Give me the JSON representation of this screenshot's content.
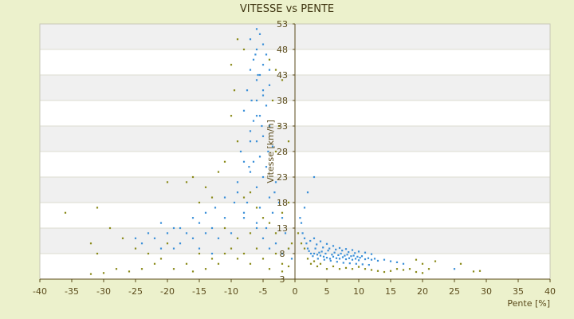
{
  "chart_data": {
    "type": "scatter",
    "title": "VITESSE vs PENTE",
    "xlabel": "Pente [%]",
    "ylabel": "Vitesse [km/h]",
    "xlim": [
      -40,
      40
    ],
    "ylim": [
      3,
      53
    ],
    "x_ticks": [
      "-40",
      "-35",
      "-30",
      "-25",
      "-20",
      "-15",
      "-10",
      "-5",
      "0",
      "5",
      "10",
      "15",
      "20",
      "25",
      "30",
      "35",
      "40"
    ],
    "y_ticks": [
      "3",
      "8",
      "13",
      "18",
      "23",
      "28",
      "33",
      "38",
      "43",
      "48",
      "53"
    ],
    "grid": "horizontal alternating bands",
    "legend": "none",
    "series": [
      {
        "color": "#3a8fd8",
        "marker": "dot",
        "points": [
          [
            -6,
            52
          ],
          [
            -5.5,
            51
          ],
          [
            -7,
            50
          ],
          [
            -5,
            49
          ],
          [
            -6,
            48
          ],
          [
            -4.5,
            47
          ],
          [
            -6.5,
            46
          ],
          [
            -5,
            45
          ],
          [
            -7,
            44
          ],
          [
            -5.5,
            43
          ],
          [
            -6,
            42
          ],
          [
            -4,
            41
          ],
          [
            -7.5,
            40
          ],
          [
            -5,
            39
          ],
          [
            -6,
            38
          ],
          [
            -4.5,
            37
          ],
          [
            -8,
            36
          ],
          [
            -5.5,
            35
          ],
          [
            -6.5,
            34
          ],
          [
            -4,
            33
          ],
          [
            -7,
            32
          ],
          [
            -5,
            31
          ],
          [
            -6,
            30
          ],
          [
            -3.5,
            29
          ],
          [
            -8.5,
            28
          ],
          [
            -5.5,
            27
          ],
          [
            -6.5,
            26
          ],
          [
            -4.5,
            25
          ],
          [
            -7,
            24
          ],
          [
            -5,
            23
          ],
          [
            -3,
            22
          ],
          [
            -6,
            21
          ],
          [
            -9,
            20
          ],
          [
            -4,
            19
          ],
          [
            -7.5,
            18
          ],
          [
            -5.5,
            17
          ],
          [
            -3.5,
            16
          ],
          [
            -8,
            15
          ],
          [
            -6,
            14
          ],
          [
            -4.5,
            13
          ],
          [
            -10,
            12
          ],
          [
            -12,
            11
          ],
          [
            -14,
            12
          ],
          [
            -16,
            11
          ],
          [
            -18,
            10
          ],
          [
            -20,
            12
          ],
          [
            -22,
            11
          ],
          [
            -24,
            10
          ],
          [
            -19,
            13
          ],
          [
            -15,
            14
          ],
          [
            -11,
            15
          ],
          [
            -13,
            13
          ],
          [
            -17,
            12
          ],
          [
            -21,
            14
          ],
          [
            -9,
            22
          ],
          [
            -8,
            26
          ],
          [
            -7,
            30
          ],
          [
            -6,
            35
          ],
          [
            -5,
            40
          ],
          [
            -4,
            44
          ],
          [
            -6.2,
            47
          ],
          [
            -5.8,
            43
          ],
          [
            -6.8,
            38
          ],
          [
            -5.2,
            33
          ],
          [
            -4.2,
            28
          ],
          [
            -7.2,
            25
          ],
          [
            -3.2,
            20
          ],
          [
            -2.5,
            18
          ],
          [
            -2,
            15
          ],
          [
            -1.5,
            12
          ],
          [
            -1,
            9
          ],
          [
            -0.5,
            7
          ],
          [
            -2,
            8
          ],
          [
            -3,
            10
          ],
          [
            -4,
            9
          ],
          [
            -5,
            11
          ],
          [
            -6,
            13
          ],
          [
            -8,
            16
          ],
          [
            -9.5,
            18
          ],
          [
            -11,
            19
          ],
          [
            -12.5,
            17
          ],
          [
            -14,
            16
          ],
          [
            -16,
            15
          ],
          [
            -18,
            13
          ],
          [
            -23,
            12
          ],
          [
            -25,
            11
          ],
          [
            -21,
            9
          ],
          [
            -19,
            9
          ],
          [
            -15,
            9
          ],
          [
            -13,
            8
          ],
          [
            1,
            14
          ],
          [
            1.2,
            12
          ],
          [
            1.5,
            11
          ],
          [
            1.8,
            10
          ],
          [
            2,
            9
          ],
          [
            2.2,
            8.5
          ],
          [
            2.5,
            8
          ],
          [
            2.8,
            7.5
          ],
          [
            3,
            8
          ],
          [
            3.2,
            9
          ],
          [
            3.5,
            7.8
          ],
          [
            3.8,
            8.2
          ],
          [
            4,
            7.6
          ],
          [
            4.2,
            8.4
          ],
          [
            4.5,
            7.4
          ],
          [
            4.8,
            8
          ],
          [
            5,
            7.2
          ],
          [
            5.2,
            8.6
          ],
          [
            5.5,
            7
          ],
          [
            5.8,
            7.8
          ],
          [
            6,
            7.4
          ],
          [
            6.2,
            8.2
          ],
          [
            6.5,
            7.1
          ],
          [
            6.8,
            7.7
          ],
          [
            7,
            7
          ],
          [
            7.2,
            8
          ],
          [
            7.5,
            7.3
          ],
          [
            7.8,
            7.6
          ],
          [
            8,
            6.9
          ],
          [
            8.2,
            7.8
          ],
          [
            8.5,
            7.1
          ],
          [
            8.8,
            7.5
          ],
          [
            9,
            6.8
          ],
          [
            9.2,
            7.6
          ],
          [
            9.5,
            7
          ],
          [
            9.8,
            7.4
          ],
          [
            10,
            6.7
          ],
          [
            10.2,
            7.2
          ],
          [
            10.5,
            7.5
          ],
          [
            11,
            6.9
          ],
          [
            11.5,
            7.1
          ],
          [
            12,
            6.8
          ],
          [
            12.5,
            7
          ],
          [
            13,
            6.6
          ],
          [
            14,
            6.8
          ],
          [
            15,
            6.5
          ],
          [
            16,
            6.3
          ],
          [
            17,
            6
          ],
          [
            2.4,
            10.5
          ],
          [
            3.4,
            9.8
          ],
          [
            4.4,
            9.2
          ],
          [
            5.4,
            9
          ],
          [
            6.4,
            8.8
          ],
          [
            7.4,
            8.6
          ],
          [
            8.4,
            8.3
          ],
          [
            9.4,
            8.1
          ],
          [
            3,
            11
          ],
          [
            4,
            10.4
          ],
          [
            5,
            9.9
          ],
          [
            6,
            9.5
          ],
          [
            7,
            9.1
          ],
          [
            8,
            8.9
          ],
          [
            9,
            8.7
          ],
          [
            10,
            8.4
          ],
          [
            11,
            8.2
          ],
          [
            12,
            7.9
          ],
          [
            3.6,
            7
          ],
          [
            4.6,
            6.8
          ],
          [
            5.6,
            6.6
          ],
          [
            6.6,
            6.4
          ],
          [
            7.6,
            6.2
          ],
          [
            8.6,
            6.1
          ],
          [
            9.6,
            6
          ],
          [
            10.6,
            5.9
          ],
          [
            11.6,
            5.8
          ],
          [
            25,
            5
          ],
          [
            2,
            20
          ],
          [
            1.5,
            17
          ],
          [
            3,
            23
          ],
          [
            0.8,
            15
          ]
        ]
      },
      {
        "color": "#8a8a1a",
        "marker": "dot",
        "points": [
          [
            -9,
            50
          ],
          [
            -8,
            48
          ],
          [
            -10,
            45
          ],
          [
            -4,
            46
          ],
          [
            -3,
            44
          ],
          [
            -9.5,
            40
          ],
          [
            -3.5,
            38
          ],
          [
            -10,
            35
          ],
          [
            -2.5,
            33
          ],
          [
            -9,
            30
          ],
          [
            -3,
            28
          ],
          [
            -11,
            26
          ],
          [
            -12,
            24
          ],
          [
            -16,
            23
          ],
          [
            -17,
            22
          ],
          [
            -20,
            22
          ],
          [
            -14,
            21
          ],
          [
            -13,
            19
          ],
          [
            -15,
            18
          ],
          [
            -31,
            17
          ],
          [
            -36,
            16
          ],
          [
            -29,
            13
          ],
          [
            -32,
            10
          ],
          [
            -31,
            8
          ],
          [
            -27,
            11
          ],
          [
            -25,
            9
          ],
          [
            -23,
            8
          ],
          [
            -21,
            7
          ],
          [
            -20,
            10
          ],
          [
            -17,
            6
          ],
          [
            -15,
            8
          ],
          [
            -13,
            7
          ],
          [
            -11,
            8
          ],
          [
            -9,
            7
          ],
          [
            -7,
            6
          ],
          [
            -5,
            7
          ],
          [
            -3,
            8
          ],
          [
            -2,
            6
          ],
          [
            -1,
            9
          ],
          [
            -0.5,
            10
          ],
          [
            -6,
            9
          ],
          [
            -8,
            8
          ],
          [
            -10,
            9
          ],
          [
            -12,
            6
          ],
          [
            -14,
            5
          ],
          [
            -16,
            4.5
          ],
          [
            -19,
            5
          ],
          [
            -22,
            6
          ],
          [
            -24,
            5
          ],
          [
            -26,
            4.5
          ],
          [
            -30,
            4.2
          ],
          [
            -32,
            4
          ],
          [
            -28,
            5
          ],
          [
            -4,
            5
          ],
          [
            -2,
            4.5
          ],
          [
            -1,
            5.5
          ],
          [
            -3,
            12
          ],
          [
            -4,
            14
          ],
          [
            -2,
            16
          ],
          [
            -1,
            18
          ],
          [
            0.5,
            12
          ],
          [
            1,
            10
          ],
          [
            1.5,
            9
          ],
          [
            2,
            7
          ],
          [
            2.5,
            6
          ],
          [
            3,
            6.5
          ],
          [
            3.5,
            5.5
          ],
          [
            4,
            6
          ],
          [
            5,
            5
          ],
          [
            6,
            5.5
          ],
          [
            7,
            5
          ],
          [
            8,
            5.2
          ],
          [
            9,
            5
          ],
          [
            10,
            5.4
          ],
          [
            11,
            5
          ],
          [
            12,
            4.8
          ],
          [
            13,
            4.6
          ],
          [
            14,
            4.4
          ],
          [
            15,
            4.6
          ],
          [
            16,
            5
          ],
          [
            17,
            4.8
          ],
          [
            18,
            5
          ],
          [
            19,
            4.4
          ],
          [
            20,
            4.2
          ],
          [
            20,
            6
          ],
          [
            21,
            5
          ],
          [
            22,
            6.5
          ],
          [
            19,
            6.8
          ],
          [
            26,
            6
          ],
          [
            28,
            4.5
          ],
          [
            29,
            4.6
          ],
          [
            -1,
            30
          ],
          [
            -2,
            42
          ],
          [
            -7,
            20
          ],
          [
            -8,
            19
          ],
          [
            -6,
            17
          ],
          [
            -5,
            15
          ],
          [
            -7,
            12
          ],
          [
            -9,
            11
          ],
          [
            -11,
            13
          ]
        ]
      }
    ]
  }
}
